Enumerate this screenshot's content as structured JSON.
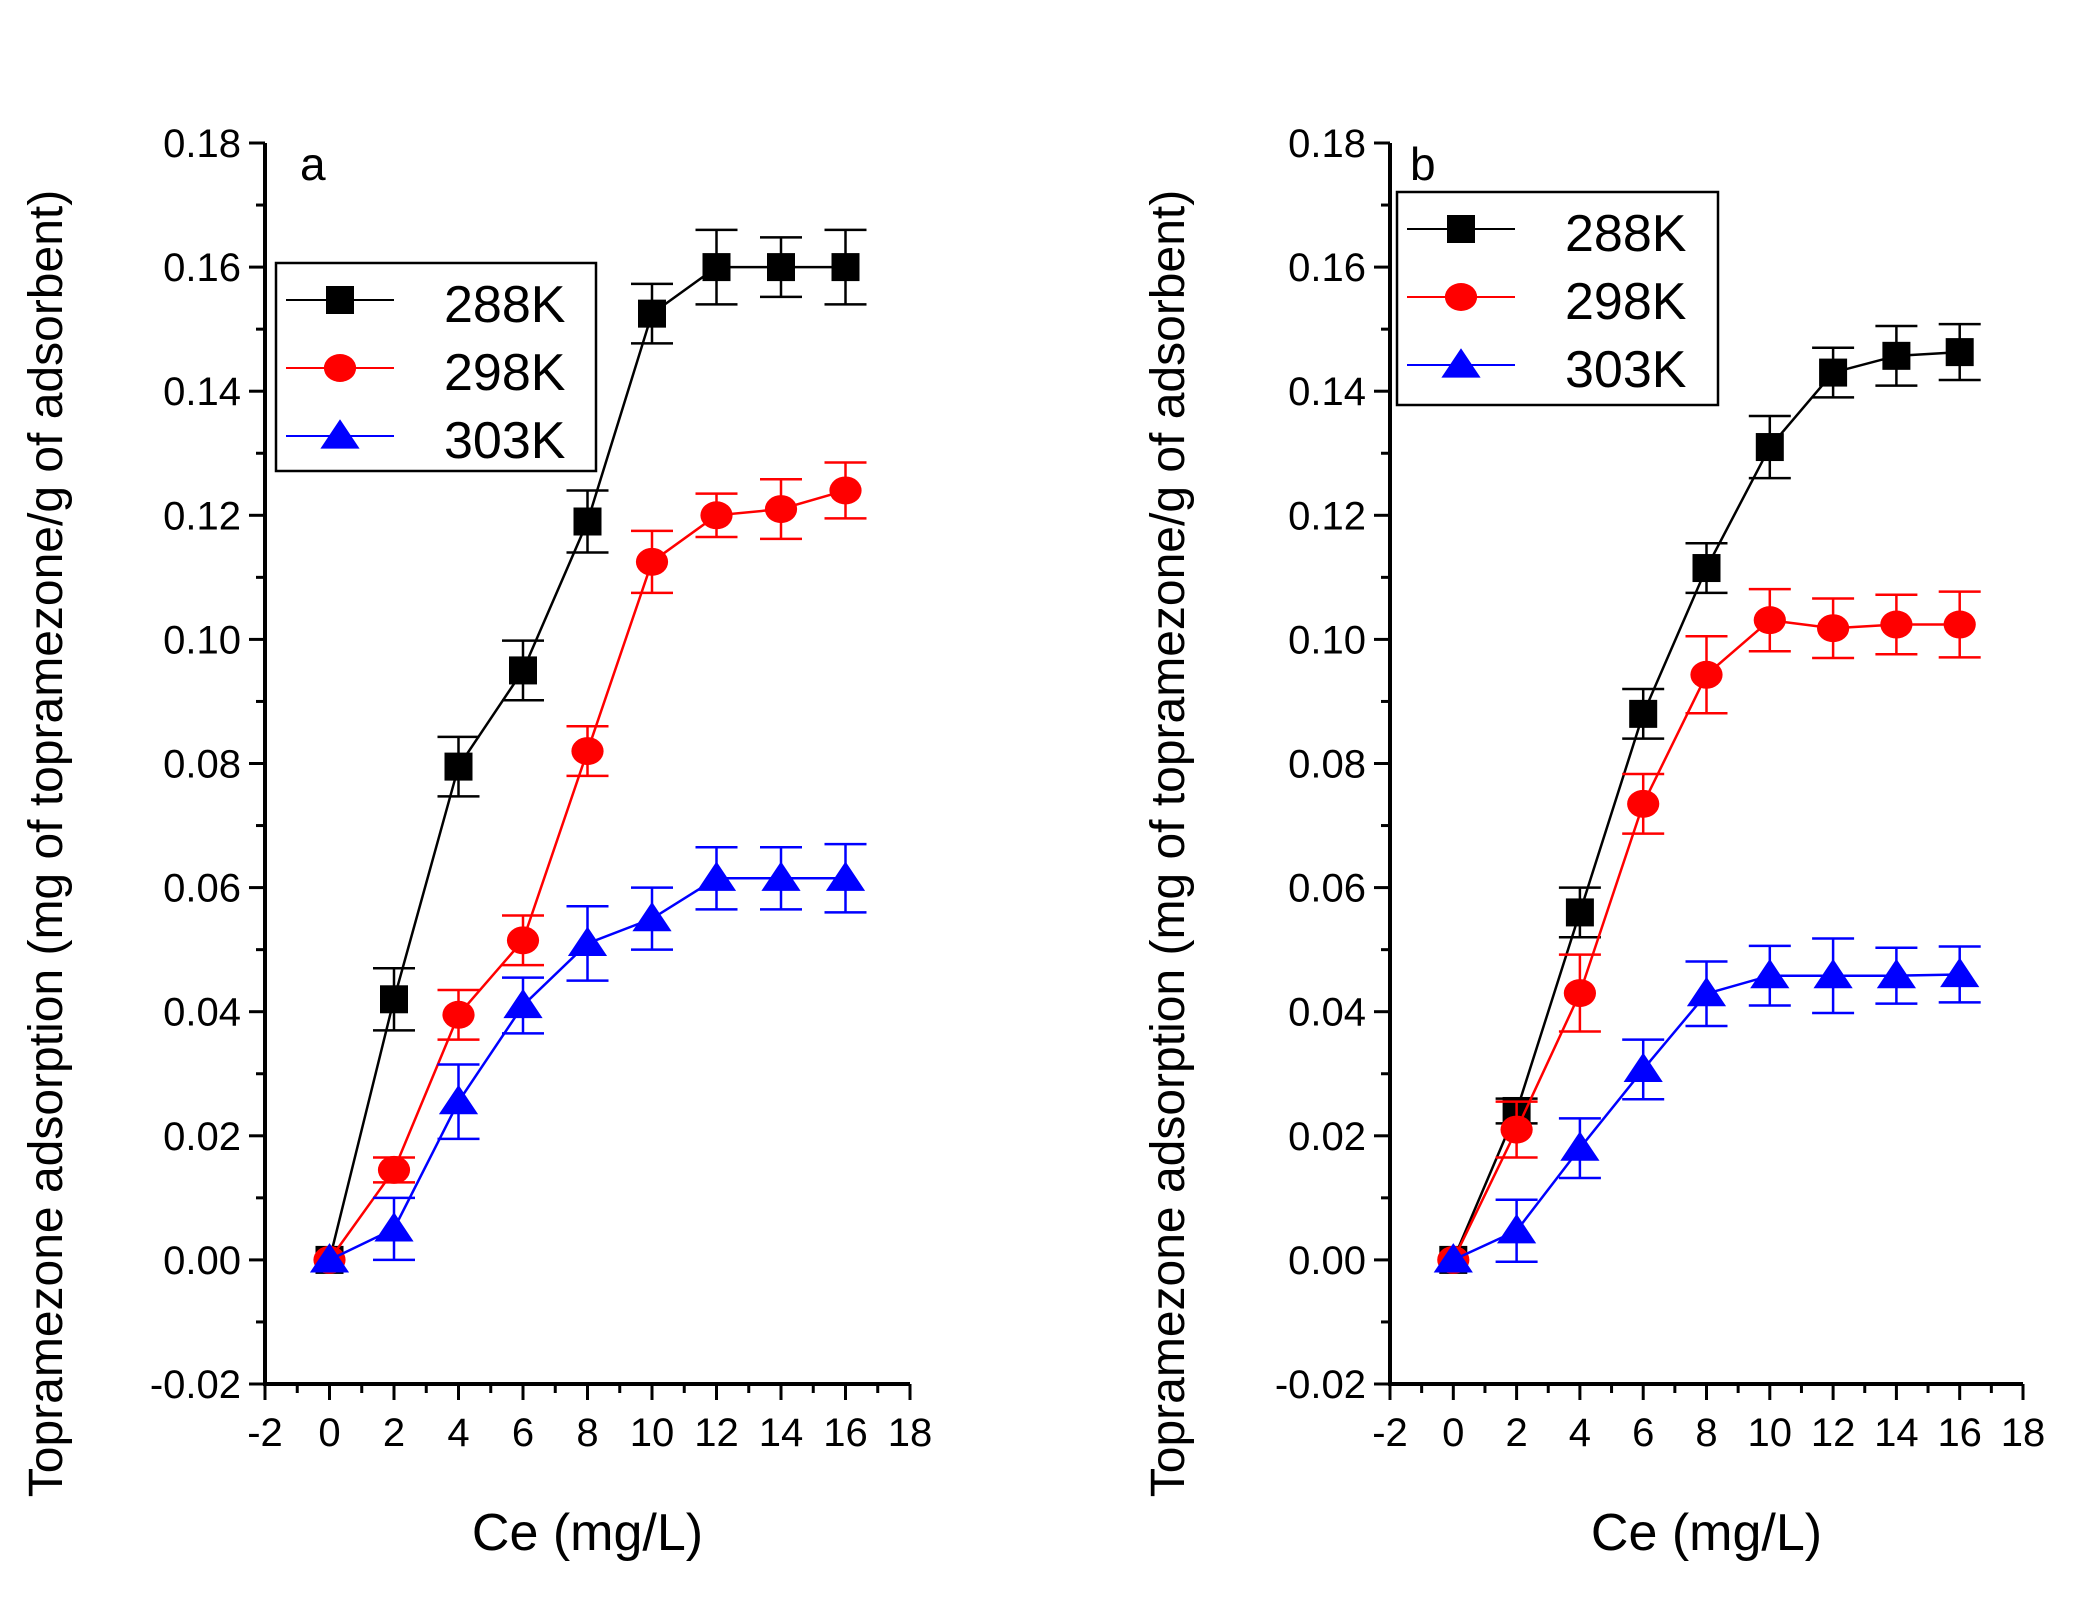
{
  "chart_data": [
    {
      "type": "line",
      "panel_label": "a",
      "xlabel": "Ce (mg/L)",
      "ylabel": "Topramezone adsorption (mg of topramezone/g of adsorbent)",
      "xlim": [
        -2,
        18
      ],
      "ylim": [
        -0.02,
        0.18
      ],
      "xticks": [
        "-2",
        "0",
        "2",
        "4",
        "6",
        "8",
        "10",
        "12",
        "14",
        "16",
        "18"
      ],
      "yticks": [
        "-0.02",
        "0.00",
        "0.02",
        "0.04",
        "0.06",
        "0.08",
        "0.10",
        "0.12",
        "0.14",
        "0.16",
        "0.18"
      ],
      "legend_position": "upper-left",
      "x": [
        0,
        2,
        4,
        6,
        8,
        10,
        12,
        14,
        16
      ],
      "series": [
        {
          "name": "288K",
          "color": "#000000",
          "marker": "square",
          "values": [
            0,
            0.042,
            0.0795,
            0.095,
            0.119,
            0.1525,
            0.16,
            0.16,
            0.16
          ],
          "errors": [
            0,
            0.005,
            0.0048,
            0.0048,
            0.005,
            0.0048,
            0.006,
            0.0048,
            0.006
          ]
        },
        {
          "name": "298K",
          "color": "#ff0000",
          "marker": "circle",
          "values": [
            0,
            0.0145,
            0.0395,
            0.0515,
            0.082,
            0.1125,
            0.12,
            0.121,
            0.124
          ],
          "errors": [
            0,
            0.002,
            0.004,
            0.004,
            0.004,
            0.005,
            0.0035,
            0.0048,
            0.0045
          ]
        },
        {
          "name": "303K",
          "color": "#0000ff",
          "marker": "triangle",
          "values": [
            0,
            0.005,
            0.0255,
            0.041,
            0.051,
            0.055,
            0.0615,
            0.0615,
            0.0615
          ],
          "errors": [
            0,
            0.005,
            0.006,
            0.0045,
            0.006,
            0.005,
            0.005,
            0.005,
            0.0055
          ]
        }
      ]
    },
    {
      "type": "line",
      "panel_label": "b",
      "xlabel": "Ce (mg/L)",
      "ylabel": "Topramezone adsorption (mg of topramezone/g of adsorbent)",
      "xlim": [
        -2,
        18
      ],
      "ylim": [
        -0.02,
        0.18
      ],
      "xticks": [
        "-2",
        "0",
        "2",
        "4",
        "6",
        "8",
        "10",
        "12",
        "14",
        "16",
        "18"
      ],
      "yticks": [
        "-0.02",
        "0.00",
        "0.02",
        "0.04",
        "0.06",
        "0.08",
        "0.10",
        "0.12",
        "0.14",
        "0.16",
        "0.18"
      ],
      "legend_position": "upper-left",
      "x": [
        0,
        2,
        4,
        6,
        8,
        10,
        12,
        14,
        16
      ],
      "series": [
        {
          "name": "288K",
          "color": "#000000",
          "marker": "square",
          "values": [
            0,
            0.024,
            0.056,
            0.088,
            0.1115,
            0.131,
            0.143,
            0.1457,
            0.1463
          ],
          "errors": [
            0,
            0.002,
            0.004,
            0.004,
            0.004,
            0.005,
            0.004,
            0.0048,
            0.0045
          ]
        },
        {
          "name": "298K",
          "color": "#ff0000",
          "marker": "circle",
          "values": [
            0,
            0.021,
            0.043,
            0.0735,
            0.0943,
            0.1031,
            0.1018,
            0.1024,
            0.1024
          ],
          "errors": [
            0,
            0.0045,
            0.0062,
            0.0048,
            0.0062,
            0.005,
            0.0048,
            0.0048,
            0.0053
          ]
        },
        {
          "name": "303K",
          "color": "#0000ff",
          "marker": "triangle",
          "values": [
            0,
            0.0047,
            0.018,
            0.0307,
            0.0429,
            0.0458,
            0.0458,
            0.0458,
            0.046
          ],
          "errors": [
            0,
            0.005,
            0.0048,
            0.0048,
            0.0052,
            0.0048,
            0.006,
            0.0045,
            0.0045
          ]
        }
      ]
    }
  ]
}
